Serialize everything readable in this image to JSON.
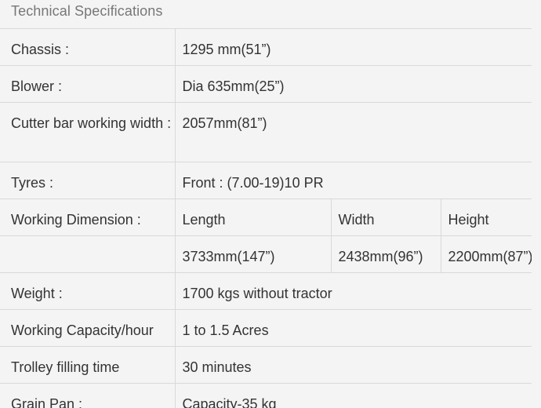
{
  "section": {
    "title": "Technical Specifications"
  },
  "specs": {
    "chassis": {
      "label": "Chassis :",
      "value": "1295 mm(51”)"
    },
    "blower": {
      "label": "Blower :",
      "value": "Dia 635mm(25”)"
    },
    "cutter_bar": {
      "label": "Cutter bar  working width :",
      "value": "2057mm(81”)"
    },
    "tyres": {
      "label": "Tyres :",
      "value": "Front : (7.00-19)10 PR"
    },
    "working_dimension": {
      "label": "Working Dimension :",
      "headers": [
        "Length",
        "Width",
        "Height"
      ],
      "values": [
        "3733mm(147”)",
        "2438mm(96”)",
        "2200mm(87”)"
      ]
    },
    "weight": {
      "label": "Weight :",
      "value": "1700 kgs without tractor"
    },
    "working_capacity": {
      "label": "Working Capacity/hour",
      "value": "1 to 1.5 Acres"
    },
    "trolley_filling": {
      "label": "Trolley filling time",
      "value": "30 minutes"
    },
    "grain_pan": {
      "label": "Grain Pan :",
      "value": "Capacity-35 kg"
    }
  }
}
